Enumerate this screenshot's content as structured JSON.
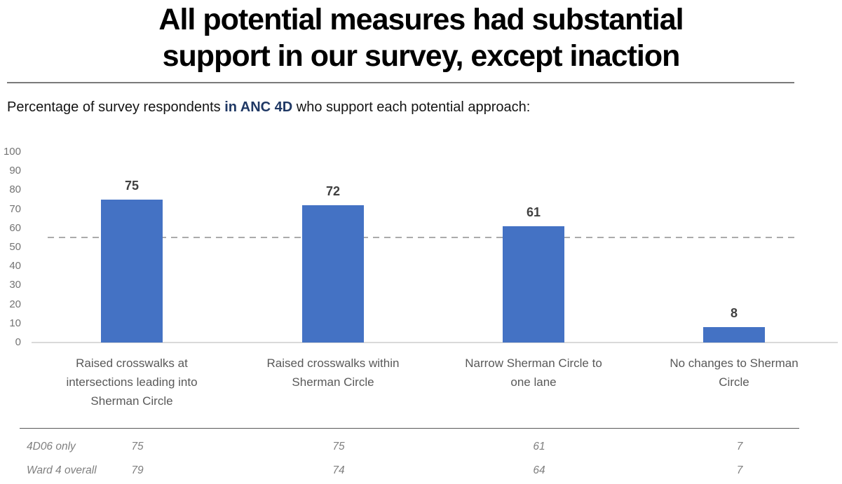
{
  "slide": {
    "title_line1": "All potential measures had substantial",
    "title_line2": "support in our survey, except inaction",
    "subtitle_prefix": "Percentage of survey respondents ",
    "subtitle_highlight": "in ANC 4D",
    "subtitle_suffix": " who support each potential approach:"
  },
  "chart_data": {
    "type": "bar",
    "title": "",
    "categories": [
      "Raised crosswalks at intersections leading into Sherman Circle",
      "Raised crosswalks within Sherman Circle",
      "Narrow Sherman Circle to one lane",
      "No changes to Sherman Circle"
    ],
    "values": [
      75,
      72,
      61,
      8
    ],
    "xlabel": "",
    "ylabel": "",
    "ylim": [
      0,
      100
    ],
    "ytick_step": 10,
    "reference_line_y": 55,
    "grid": false,
    "legend": "none",
    "data_labels": true,
    "bar_color": "#4472C4"
  },
  "comparison_table": {
    "rows": [
      {
        "label": "4D06 only",
        "values": [
          "75",
          "75",
          "61",
          "7"
        ]
      },
      {
        "label": "Ward 4 overall",
        "values": [
          "79",
          "74",
          "64",
          "7"
        ]
      }
    ]
  },
  "colors": {
    "accent_blue": "#4472C4",
    "highlight_navy": "#1F3864",
    "axis_gray": "#737373",
    "data_label_gray": "#404040",
    "category_gray": "#595959",
    "table_gray": "#7F7F7F"
  }
}
